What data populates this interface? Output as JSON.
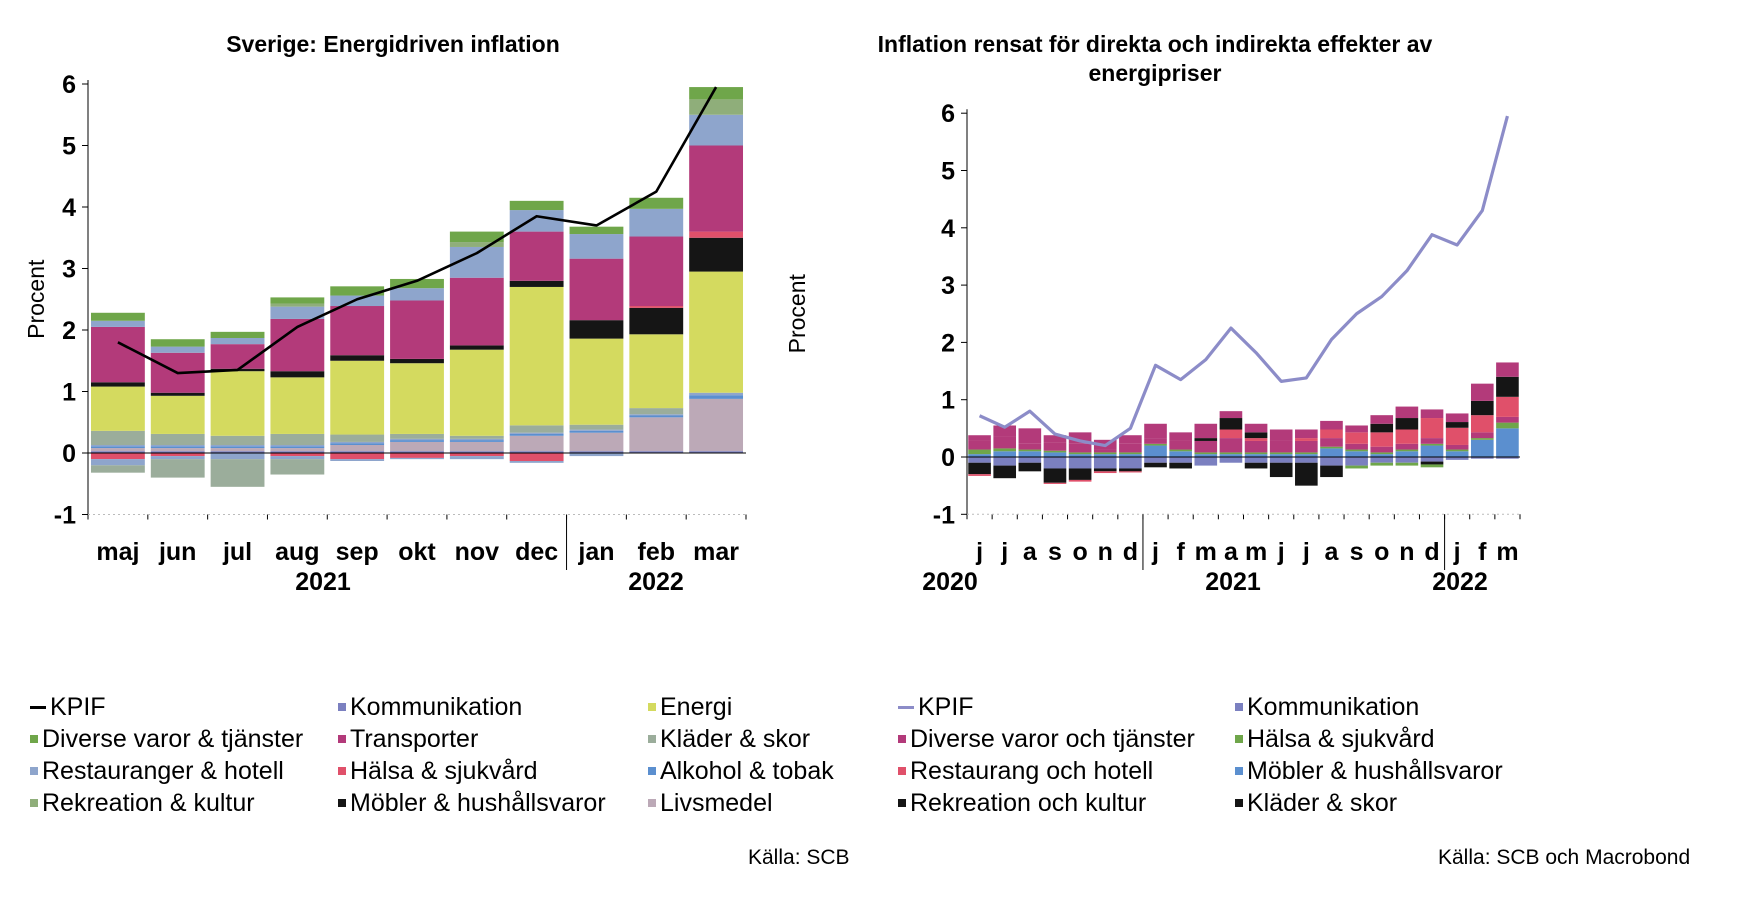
{
  "colors": {
    "KPIF_left": "#000000",
    "KPIF_right": "#8C8CC8",
    "Energi": "#D4DA5F",
    "Transporter": "#B33A7A",
    "Diverse": "#6FA64A",
    "Restauranger": "#8EA5CC",
    "Rekreation": "#8FAE7A",
    "Kommunikation": "#7B80C0",
    "Kläder": "#9BAD9B",
    "Hälsa": "#E0506A",
    "Möbler": "#151515",
    "Alkohol": "#5B8FCF",
    "Livsmedel": "#BCA9B7"
  },
  "chart_data": [
    {
      "type": "bar",
      "stacked": true,
      "title": "Sverige: Energidriven inflation",
      "ylabel": "Procent",
      "ylim": [
        -1,
        6
      ],
      "yticks": [
        "-1",
        "0",
        "1",
        "2",
        "3",
        "4",
        "5",
        "6"
      ],
      "categories": [
        "maj",
        "jun",
        "jul",
        "aug",
        "sep",
        "okt",
        "nov",
        "dec",
        "jan",
        "feb",
        "mar"
      ],
      "year_labels": [
        "2021",
        "2022"
      ],
      "line": {
        "name": "KPIF",
        "values": [
          1.8,
          1.3,
          1.35,
          2.05,
          2.5,
          2.8,
          3.25,
          3.85,
          3.7,
          4.25,
          5.95
        ]
      },
      "series": [
        {
          "name": "Kommunikation",
          "key": "Kommunikation",
          "values": [
            0.03,
            0.03,
            0.03,
            0.03,
            0.03,
            0.03,
            0.03,
            0.03,
            0.03,
            0.03,
            0.03
          ]
        },
        {
          "name": "Livsmedel",
          "key": "Livsmedel",
          "values": [
            0.05,
            0.05,
            0.05,
            0.05,
            0.1,
            0.15,
            0.15,
            0.25,
            0.3,
            0.55,
            0.85
          ]
        },
        {
          "name": "Alkohol & tobak",
          "key": "Alkohol",
          "values": [
            0.03,
            0.03,
            0.03,
            0.03,
            0.03,
            0.03,
            0.03,
            0.03,
            0.03,
            0.03,
            0.06
          ]
        },
        {
          "name": "Restauranger & hotell",
          "key": "Restauranger",
          "values": [
            0.02,
            0.02,
            0.02,
            0.02,
            0.02,
            0.02,
            0.02,
            0.02,
            0.02,
            0.02,
            0.04
          ]
        },
        {
          "name": "Kläder & skor",
          "key": "Kläder",
          "values": [
            0.23,
            0.18,
            0.15,
            0.18,
            0.12,
            0.08,
            0.05,
            0.12,
            0.08,
            0.1,
            0.0
          ]
        },
        {
          "name": "Energi",
          "key": "Energi",
          "values": [
            0.72,
            0.62,
            1.05,
            0.92,
            1.2,
            1.15,
            1.4,
            2.25,
            1.4,
            1.2,
            1.97
          ]
        },
        {
          "name": "Möbler & hushållsvaror",
          "key": "Möbler",
          "values": [
            0.07,
            0.05,
            0.04,
            0.1,
            0.09,
            0.07,
            0.07,
            0.1,
            0.3,
            0.43,
            0.55
          ]
        },
        {
          "name": "Hälsa & sjukvård",
          "key": "Hälsa",
          "values": [
            0.0,
            0.0,
            0.0,
            0.0,
            0.0,
            0.0,
            0.0,
            0.0,
            0.0,
            0.03,
            0.1
          ]
        },
        {
          "name": "Transporter",
          "key": "Transporter",
          "values": [
            0.9,
            0.65,
            0.4,
            0.85,
            0.8,
            0.95,
            1.1,
            0.8,
            1.0,
            1.13,
            1.4
          ]
        },
        {
          "name": "Restauranger & hotell",
          "key": "Restauranger",
          "values": [
            0.1,
            0.1,
            0.1,
            0.2,
            0.17,
            0.2,
            0.5,
            0.35,
            0.4,
            0.45,
            0.5
          ]
        },
        {
          "name": "Rekreation & kultur",
          "key": "Rekreation",
          "values": [
            0.0,
            0.0,
            0.0,
            0.05,
            0.0,
            0.0,
            0.08,
            0.0,
            0.0,
            0.0,
            0.25
          ]
        },
        {
          "name": "Diverse varor & tjänster",
          "key": "Diverse",
          "values": [
            0.13,
            0.12,
            0.1,
            0.1,
            0.15,
            0.15,
            0.17,
            0.15,
            0.12,
            0.18,
            0.2
          ]
        }
      ],
      "negative_series": [
        {
          "name": "Hälsa & sjukvård",
          "key": "Hälsa",
          "values": [
            -0.1,
            -0.05,
            0.0,
            -0.05,
            -0.1,
            -0.08,
            -0.05,
            -0.13,
            0.0,
            0.0,
            0.0
          ]
        },
        {
          "name": "Restauranger & hotell",
          "key": "Restauranger",
          "values": [
            -0.1,
            -0.05,
            -0.1,
            -0.05,
            -0.03,
            -0.02,
            -0.05,
            -0.03,
            -0.05,
            0.0,
            0.0
          ]
        },
        {
          "name": "Kläder & skor",
          "key": "Kläder",
          "values": [
            -0.12,
            -0.3,
            -0.45,
            -0.25,
            0.0,
            0.0,
            0.0,
            0.0,
            0.0,
            0.0,
            0.0
          ]
        }
      ],
      "legend": [
        {
          "label": "KPIF",
          "key": "KPIF_left",
          "kind": "line"
        },
        {
          "label": "Kommunikation",
          "key": "Kommunikation",
          "kind": "box"
        },
        {
          "label": "Energi",
          "key": "Energi",
          "kind": "box"
        },
        {
          "label": "Diverse varor & tjänster",
          "key": "Diverse",
          "kind": "box"
        },
        {
          "label": "Transporter",
          "key": "Transporter",
          "kind": "box"
        },
        {
          "label": "Kläder & skor",
          "key": "Kläder",
          "kind": "box"
        },
        {
          "label": "Restauranger & hotell",
          "key": "Restauranger",
          "kind": "box"
        },
        {
          "label": "Hälsa & sjukvård",
          "key": "Hälsa",
          "kind": "box"
        },
        {
          "label": "Alkohol & tobak",
          "key": "Alkohol",
          "kind": "box"
        },
        {
          "label": "Rekreation & kultur",
          "key": "Rekreation",
          "kind": "box"
        },
        {
          "label": "Möbler & hushållsvaror",
          "key": "Möbler",
          "kind": "box"
        },
        {
          "label": "Livsmedel",
          "key": "Livsmedel",
          "kind": "box"
        }
      ],
      "source": "Källa: SCB"
    },
    {
      "type": "bar",
      "stacked": true,
      "title_lines": [
        "Inflation rensat för direkta och indirekta effekter av",
        "energipriser"
      ],
      "ylabel": "Procent",
      "ylim": [
        -1,
        6
      ],
      "yticks": [
        "-1",
        "0",
        "1",
        "2",
        "3",
        "4",
        "5",
        "6"
      ],
      "categories": [
        "j",
        "j",
        "a",
        "s",
        "o",
        "n",
        "d",
        "j",
        "f",
        "m",
        "a",
        "m",
        "j",
        "j",
        "a",
        "s",
        "o",
        "n",
        "d",
        "j",
        "f",
        "m"
      ],
      "year_labels": [
        "2020",
        "2021",
        "2022"
      ],
      "line": {
        "name": "KPIF",
        "values": [
          0.72,
          0.52,
          0.8,
          0.4,
          0.28,
          0.2,
          0.5,
          1.6,
          1.35,
          1.7,
          2.25,
          1.82,
          1.32,
          1.38,
          2.05,
          2.5,
          2.8,
          3.25,
          3.88,
          3.7,
          4.3,
          5.95
        ]
      },
      "series": [
        {
          "name": "Kommunikation",
          "key": "Kommunikation",
          "values": [
            0.0,
            0.0,
            0.0,
            0.0,
            0.0,
            0.0,
            0.0,
            0.0,
            0.0,
            0.0,
            0.0,
            0.0,
            0.0,
            0.0,
            0.0,
            0.0,
            0.0,
            0.0,
            0.0,
            0.0,
            0.0,
            0.0
          ]
        },
        {
          "name": "Möbler & hushållsvaror",
          "key": "Alkohol",
          "values": [
            0.05,
            0.1,
            0.1,
            0.08,
            0.05,
            0.05,
            0.05,
            0.2,
            0.1,
            0.05,
            0.05,
            0.05,
            0.05,
            0.05,
            0.15,
            0.1,
            0.05,
            0.1,
            0.2,
            0.1,
            0.3,
            0.5
          ]
        },
        {
          "name": "Hälsa & sjukvård",
          "key": "Diverse",
          "values": [
            0.08,
            0.05,
            0.03,
            0.03,
            0.03,
            0.03,
            0.03,
            0.03,
            0.03,
            0.03,
            0.03,
            0.03,
            0.03,
            0.03,
            0.03,
            0.03,
            0.03,
            0.03,
            0.03,
            0.03,
            0.03,
            0.1
          ]
        },
        {
          "name": "Diverse varor och tjänster",
          "key": "Transporter",
          "values": [
            0.15,
            0.2,
            0.1,
            0.15,
            0.15,
            0.05,
            0.15,
            0.1,
            0.15,
            0.2,
            0.25,
            0.2,
            0.2,
            0.2,
            0.15,
            0.1,
            0.1,
            0.1,
            0.1,
            0.08,
            0.1,
            0.1
          ]
        },
        {
          "name": "Restaurang och hotell",
          "key": "Hälsa",
          "values": [
            0.0,
            0.0,
            0.0,
            0.0,
            0.0,
            0.0,
            0.0,
            0.0,
            0.0,
            0.0,
            0.15,
            0.05,
            0.0,
            0.05,
            0.15,
            0.2,
            0.25,
            0.25,
            0.35,
            0.3,
            0.3,
            0.35
          ]
        },
        {
          "name": "Rekreation och kultur",
          "key": "Möbler",
          "values": [
            0.0,
            0.0,
            0.0,
            0.0,
            0.0,
            0.0,
            0.0,
            0.0,
            0.0,
            0.05,
            0.2,
            0.1,
            0.0,
            0.0,
            0.0,
            0.0,
            0.15,
            0.2,
            0.0,
            0.1,
            0.25,
            0.35
          ]
        },
        {
          "name": "Diverse varor och tjänster",
          "key": "Transporter",
          "values": [
            0.1,
            0.2,
            0.27,
            0.12,
            0.2,
            0.17,
            0.15,
            0.25,
            0.15,
            0.25,
            0.12,
            0.15,
            0.2,
            0.15,
            0.15,
            0.12,
            0.15,
            0.2,
            0.15,
            0.15,
            0.3,
            0.25
          ]
        }
      ],
      "negative_series": [
        {
          "name": "Kommunikation",
          "key": "Kommunikation",
          "values": [
            -0.1,
            -0.15,
            -0.1,
            -0.2,
            -0.2,
            -0.2,
            -0.2,
            -0.1,
            -0.1,
            -0.15,
            -0.1,
            -0.1,
            -0.1,
            -0.1,
            -0.15,
            -0.15,
            -0.1,
            -0.1,
            -0.08,
            -0.05,
            -0.03,
            -0.03
          ]
        },
        {
          "name": "Rekreation och kultur",
          "key": "Möbler",
          "values": [
            -0.2,
            -0.22,
            -0.15,
            -0.25,
            -0.2,
            -0.05,
            -0.05,
            -0.08,
            -0.1,
            0.0,
            0.0,
            -0.1,
            -0.25,
            -0.4,
            -0.2,
            0.0,
            0.0,
            0.0,
            -0.05,
            0.0,
            0.0,
            0.0
          ]
        },
        {
          "name": "Hälsa & sjukvård",
          "key": "Diverse",
          "values": [
            0.0,
            0.0,
            0.0,
            0.0,
            0.0,
            0.0,
            0.0,
            0.0,
            0.0,
            0.0,
            0.0,
            0.0,
            0.0,
            0.0,
            0.0,
            -0.05,
            -0.05,
            -0.05,
            -0.05,
            0.0,
            0.0,
            0.0
          ]
        },
        {
          "name": "Restaurang och hotell",
          "key": "Hälsa",
          "values": [
            -0.03,
            0.0,
            0.0,
            -0.02,
            -0.03,
            -0.03,
            -0.02,
            0.0,
            0.0,
            0.0,
            0.0,
            0.0,
            0.0,
            0.0,
            0.0,
            0.0,
            0.0,
            0.0,
            0.0,
            0.0,
            0.0,
            0.0
          ]
        }
      ],
      "legend": [
        {
          "label": "KPIF",
          "key": "KPIF_right",
          "kind": "line"
        },
        {
          "label": "Kommunikation",
          "key": "Kommunikation",
          "kind": "box"
        },
        {
          "label": "Diverse varor och tjänster",
          "key": "Transporter",
          "kind": "box"
        },
        {
          "label": "Hälsa & sjukvård",
          "key": "Diverse",
          "kind": "box"
        },
        {
          "label": "Restaurang och hotell",
          "key": "Hälsa",
          "kind": "box"
        },
        {
          "label": "Möbler & hushållsvaror",
          "key": "Alkohol",
          "kind": "box"
        },
        {
          "label": "Rekreation och kultur",
          "key": "Möbler",
          "kind": "box"
        },
        {
          "label": "Kläder & skor",
          "key": "Möbler",
          "kind": "box"
        }
      ],
      "source": "Källa: SCB och Macrobond"
    }
  ]
}
